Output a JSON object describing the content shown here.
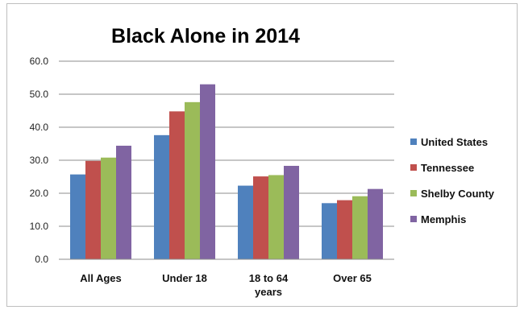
{
  "chart_data": {
    "type": "bar",
    "title": "Black Alone in 2014",
    "categories": [
      "All Ages",
      "Under 18",
      "18 to 64\nyears",
      "Over 65"
    ],
    "series": [
      {
        "name": "United States",
        "color": "#4f81bd",
        "values": [
          25.7,
          37.6,
          22.3,
          17.0
        ]
      },
      {
        "name": "Tennessee",
        "color": "#c0504d",
        "values": [
          29.8,
          44.8,
          25.1,
          17.9
        ]
      },
      {
        "name": "Shelby County",
        "color": "#9bbb59",
        "values": [
          30.8,
          47.6,
          25.5,
          19.1
        ]
      },
      {
        "name": "Memphis",
        "color": "#8064a2",
        "values": [
          34.4,
          53.0,
          28.3,
          21.3
        ]
      }
    ],
    "ylim": [
      0,
      60
    ],
    "yticks": [
      "0.0",
      "10.0",
      "20.0",
      "30.0",
      "40.0",
      "50.0",
      "60.0"
    ],
    "ytick_values": [
      0,
      10,
      20,
      30,
      40,
      50,
      60
    ],
    "grid": true,
    "legend_position": "right"
  }
}
